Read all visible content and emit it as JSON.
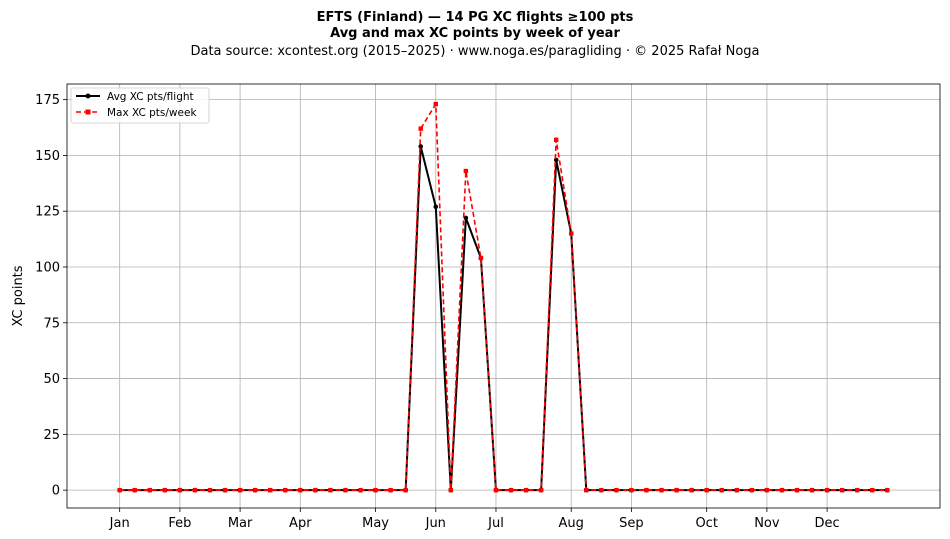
{
  "chart_data": {
    "type": "line",
    "title": "EFTS (Finland)  —  14 PG XC flights ≥100 pts",
    "subtitle": "Avg and max XC points by week of year",
    "source_line": "Data source: xcontest.org (2015–2025)  ·  www.noga.es/paragliding  ·  © 2025 Rafał Noga",
    "xlabel": "",
    "ylabel": "XC points",
    "x_unit": "week of year",
    "xlim": [
      -2.5,
      55.5
    ],
    "ylim": [
      -8,
      182
    ],
    "grid": true,
    "legend_position": "top-left",
    "month_ticks": [
      {
        "label": "Jan",
        "week": 1
      },
      {
        "label": "Feb",
        "week": 5
      },
      {
        "label": "Mar",
        "week": 9
      },
      {
        "label": "Apr",
        "week": 13
      },
      {
        "label": "May",
        "week": 18
      },
      {
        "label": "Jun",
        "week": 22
      },
      {
        "label": "Jul",
        "week": 26
      },
      {
        "label": "Aug",
        "week": 31
      },
      {
        "label": "Sep",
        "week": 35
      },
      {
        "label": "Oct",
        "week": 40
      },
      {
        "label": "Nov",
        "week": 44
      },
      {
        "label": "Dec",
        "week": 48
      }
    ],
    "y_ticks": [
      0,
      25,
      50,
      75,
      100,
      125,
      150,
      175
    ],
    "x": [
      1,
      2,
      3,
      4,
      5,
      6,
      7,
      8,
      9,
      10,
      11,
      12,
      13,
      14,
      15,
      16,
      17,
      18,
      19,
      20,
      21,
      22,
      23,
      24,
      25,
      26,
      27,
      28,
      29,
      30,
      31,
      32,
      33,
      34,
      35,
      36,
      37,
      38,
      39,
      40,
      41,
      42,
      43,
      44,
      45,
      46,
      47,
      48,
      49,
      50,
      51,
      52
    ],
    "series": [
      {
        "name": "Avg XC pts/flight",
        "color": "#000000",
        "values": [
          0,
          0,
          0,
          0,
          0,
          0,
          0,
          0,
          0,
          0,
          0,
          0,
          0,
          0,
          0,
          0,
          0,
          0,
          0,
          0,
          154,
          127,
          0,
          122,
          104,
          0,
          0,
          0,
          0,
          148,
          115,
          0,
          0,
          0,
          0,
          0,
          0,
          0,
          0,
          0,
          0,
          0,
          0,
          0,
          0,
          0,
          0,
          0,
          0,
          0,
          0,
          0
        ]
      },
      {
        "name": "Max XC pts/week",
        "color": "#ff0000",
        "values": [
          0,
          0,
          0,
          0,
          0,
          0,
          0,
          0,
          0,
          0,
          0,
          0,
          0,
          0,
          0,
          0,
          0,
          0,
          0,
          0,
          162,
          173,
          0,
          143,
          104,
          0,
          0,
          0,
          0,
          157,
          115,
          0,
          0,
          0,
          0,
          0,
          0,
          0,
          0,
          0,
          0,
          0,
          0,
          0,
          0,
          0,
          0,
          0,
          0,
          0,
          0,
          0
        ]
      }
    ]
  }
}
